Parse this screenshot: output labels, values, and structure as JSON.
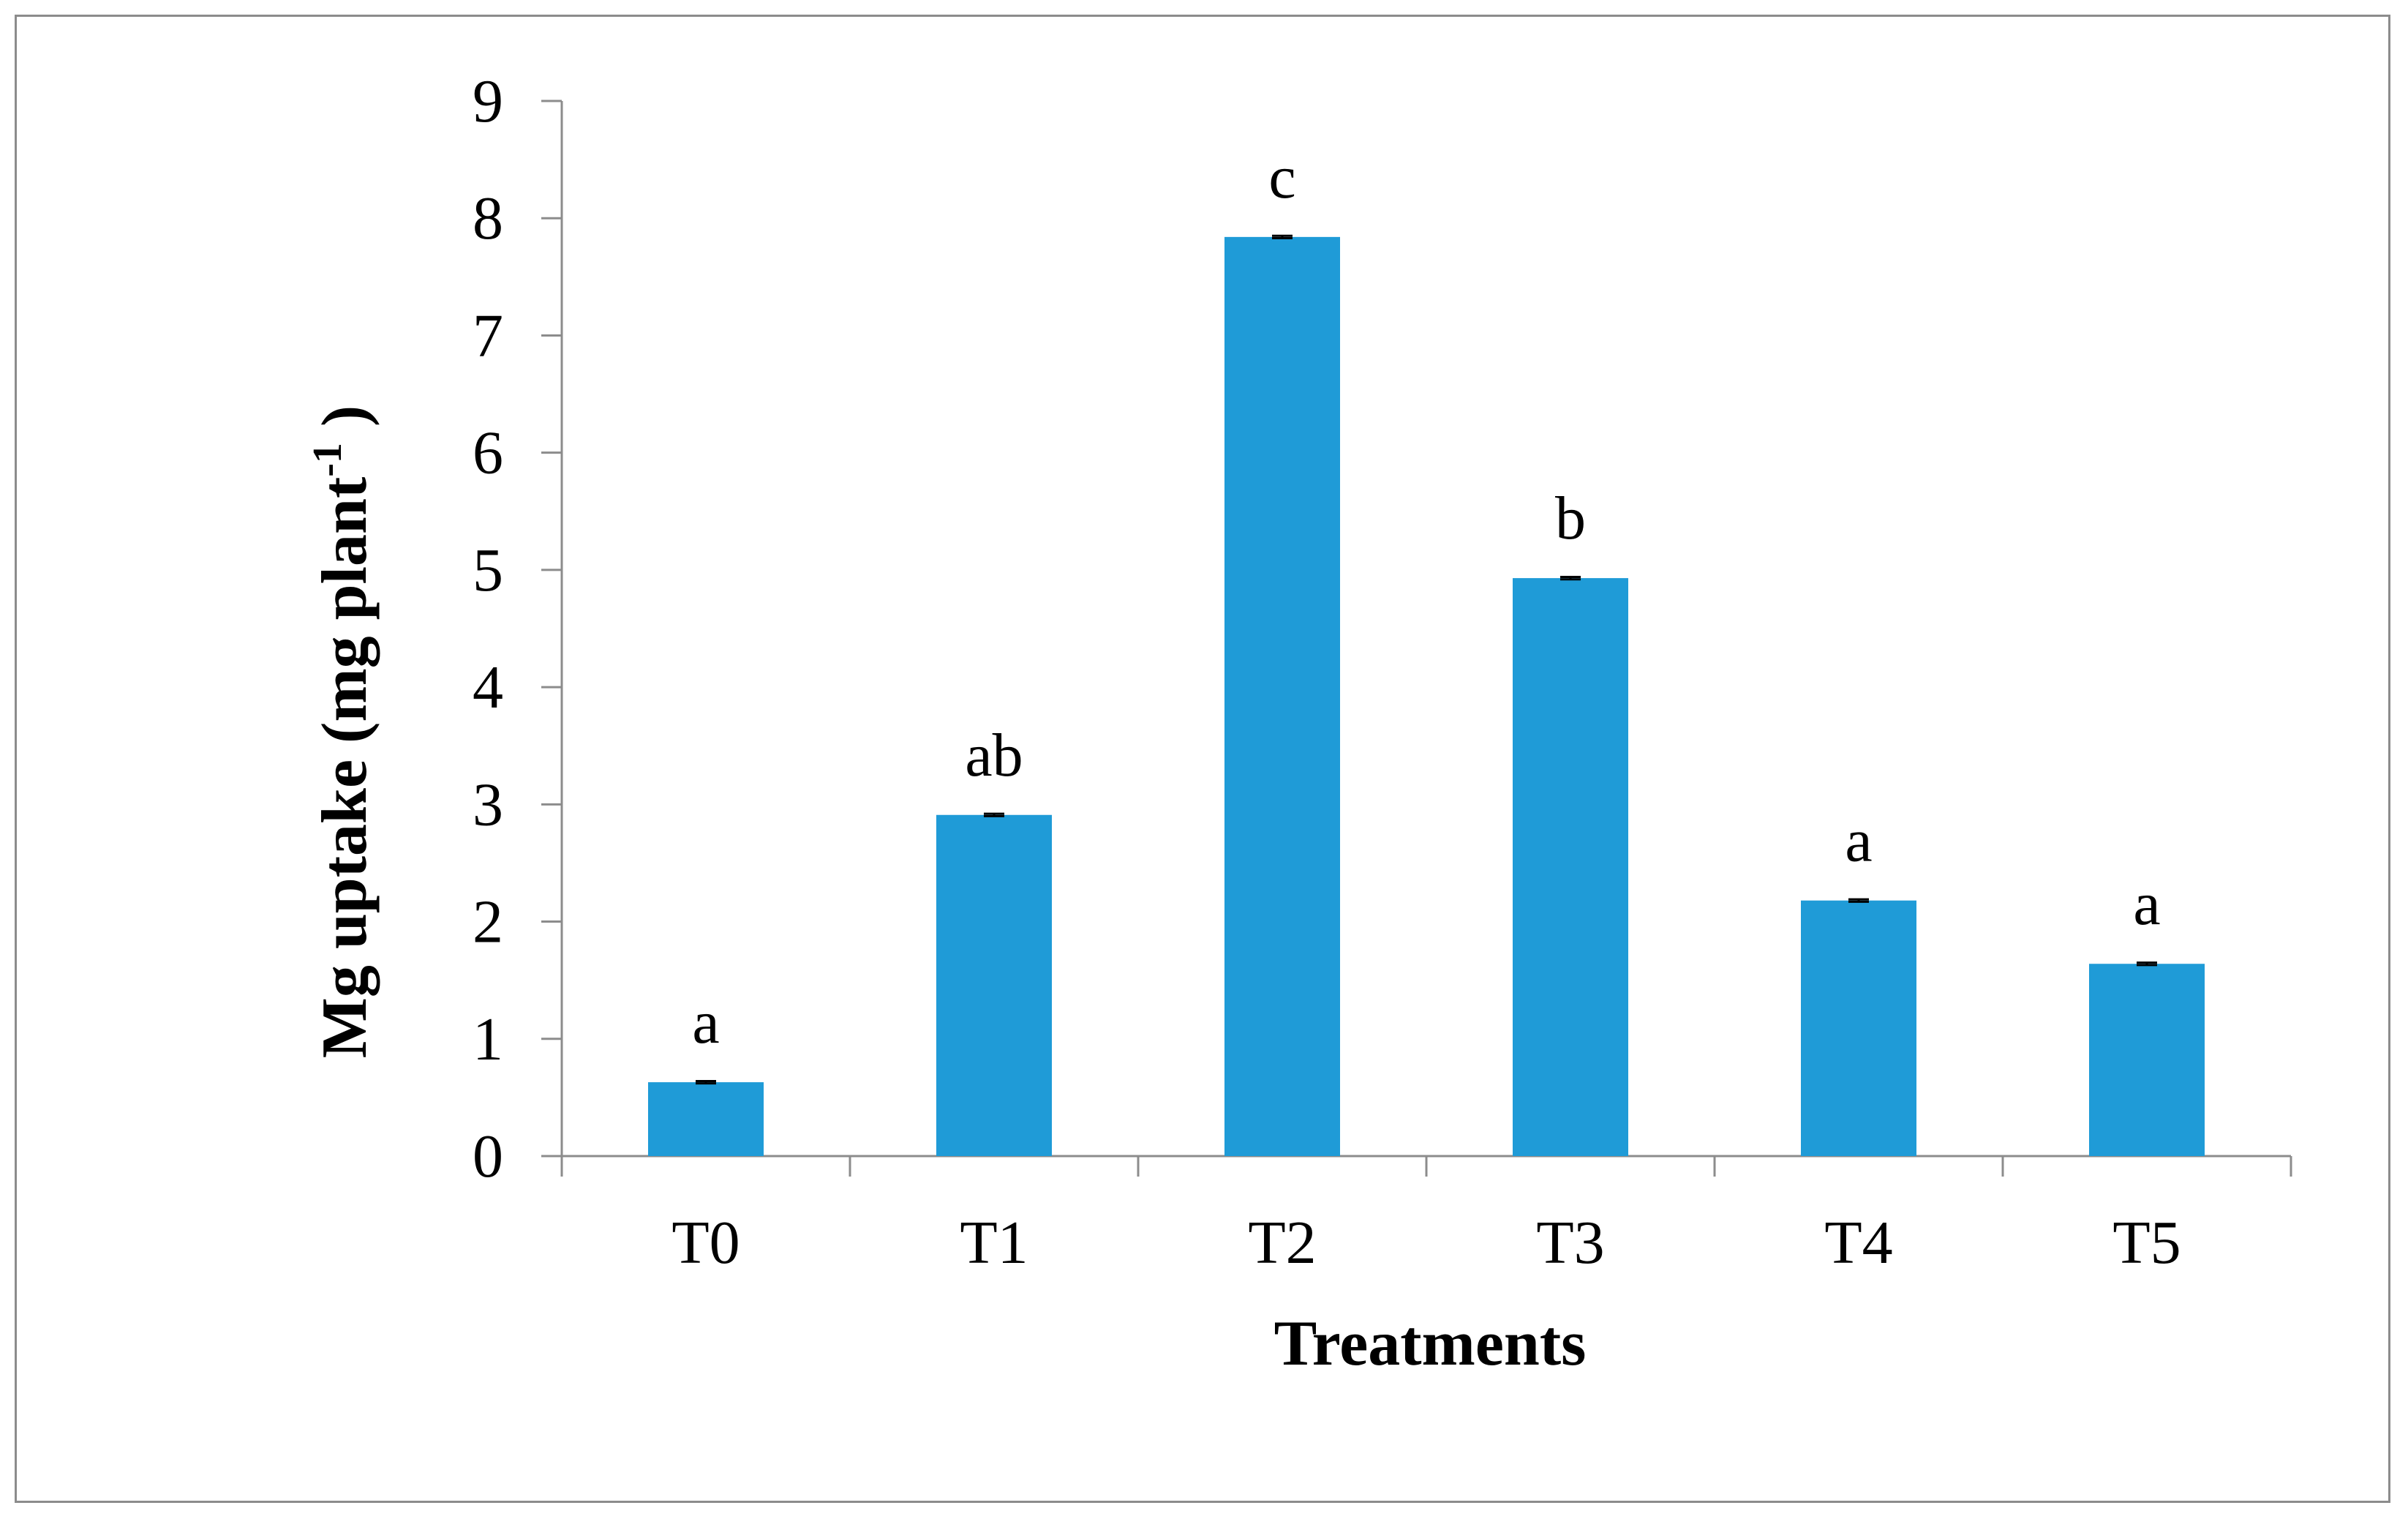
{
  "chart_data": {
    "type": "bar",
    "title": "",
    "xlabel": "Treatments",
    "ylabel_main": "Mg uptake (mg plant",
    "ylabel_sup": "-1",
    "ylabel_end": " )",
    "categories": [
      "T0",
      "T1",
      "T2",
      "T3",
      "T4",
      "T5"
    ],
    "values": [
      0.63,
      2.91,
      7.84,
      4.93,
      2.18,
      1.64
    ],
    "error": [
      0.01,
      0.01,
      0.01,
      0.01,
      0.01,
      0.01
    ],
    "significance": [
      "a",
      "ab",
      "c",
      "b",
      "a",
      "a"
    ],
    "ylim": [
      0,
      9
    ],
    "yticks": [
      "0",
      "1",
      "2",
      "3",
      "4",
      "5",
      "6",
      "7",
      "8",
      "9"
    ],
    "grid": false,
    "legend": "none",
    "bar_color": "#1f9bd7",
    "axis_color": "#8c8c8c"
  }
}
